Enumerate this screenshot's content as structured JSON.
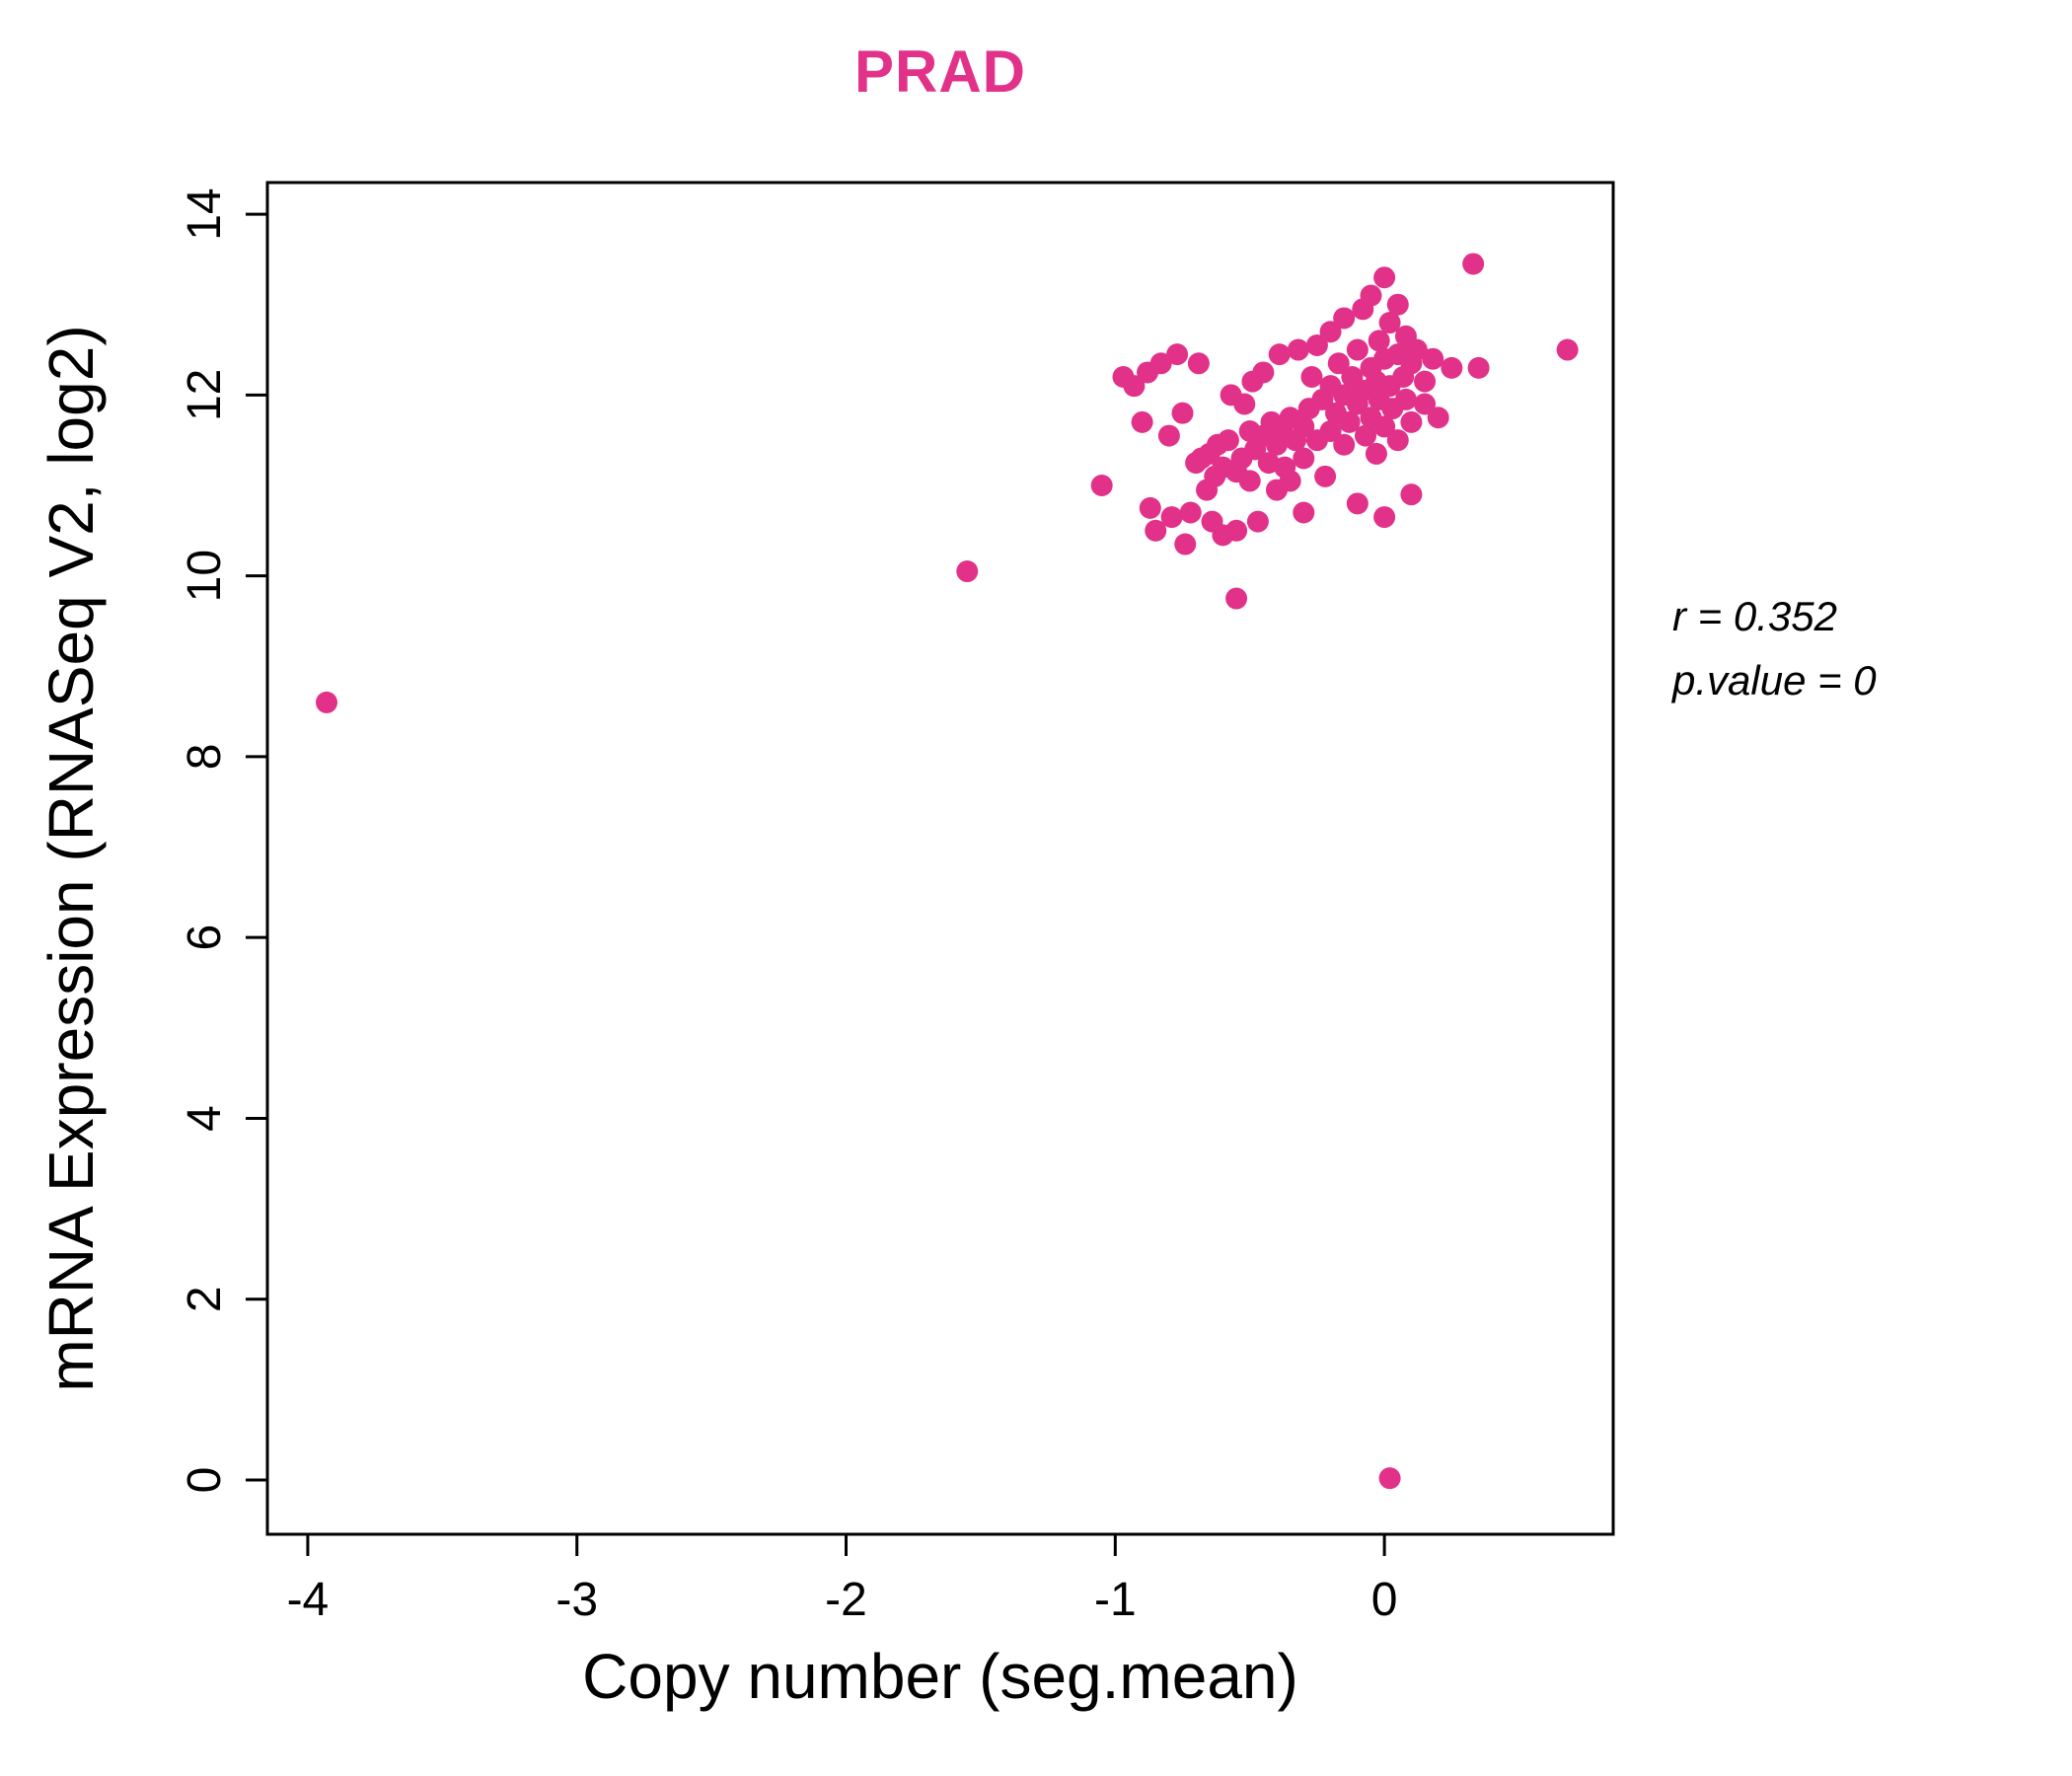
{
  "chart_data": {
    "type": "scatter",
    "title": "PRAD",
    "xlabel": "Copy number (seg.mean)",
    "ylabel": "mRNA Expression (RNASeq V2, log2)",
    "xlim": [
      -4.15,
      0.85
    ],
    "ylim": [
      -0.6,
      14.35
    ],
    "xticks": [
      -4,
      -3,
      -2,
      -1,
      0
    ],
    "yticks": [
      0,
      2,
      4,
      6,
      8,
      10,
      12,
      14
    ],
    "grid": false,
    "legend": "none",
    "point_color": "#E23189",
    "title_color": "#E23189",
    "axis_color": "#000000",
    "annotations": [
      "r = 0.352",
      "p.value = 0"
    ],
    "points": [
      [
        -3.93,
        8.6
      ],
      [
        -1.55,
        10.05
      ],
      [
        -0.55,
        9.75
      ],
      [
        0.02,
        0.02
      ],
      [
        -1.05,
        11.0
      ],
      [
        -0.97,
        12.2
      ],
      [
        -0.93,
        12.1
      ],
      [
        -0.9,
        11.7
      ],
      [
        -0.88,
        12.25
      ],
      [
        -0.87,
        10.75
      ],
      [
        -0.85,
        10.5
      ],
      [
        -0.83,
        12.35
      ],
      [
        -0.8,
        11.55
      ],
      [
        -0.79,
        10.65
      ],
      [
        -0.77,
        12.45
      ],
      [
        -0.75,
        11.8
      ],
      [
        -0.74,
        10.35
      ],
      [
        -0.72,
        10.7
      ],
      [
        -0.7,
        11.25
      ],
      [
        -0.69,
        12.35
      ],
      [
        -0.68,
        11.3
      ],
      [
        -0.66,
        10.95
      ],
      [
        -0.65,
        11.35
      ],
      [
        -0.64,
        10.6
      ],
      [
        -0.63,
        11.1
      ],
      [
        -0.62,
        11.45
      ],
      [
        -0.6,
        11.2
      ],
      [
        -0.6,
        10.45
      ],
      [
        -0.58,
        11.5
      ],
      [
        -0.57,
        12.0
      ],
      [
        -0.55,
        11.15
      ],
      [
        -0.55,
        10.5
      ],
      [
        -0.53,
        11.3
      ],
      [
        -0.52,
        11.9
      ],
      [
        -0.5,
        11.6
      ],
      [
        -0.5,
        11.05
      ],
      [
        -0.49,
        12.15
      ],
      [
        -0.48,
        11.4
      ],
      [
        -0.47,
        10.6
      ],
      [
        -0.45,
        11.55
      ],
      [
        -0.45,
        12.25
      ],
      [
        -0.43,
        11.25
      ],
      [
        -0.42,
        11.7
      ],
      [
        -0.4,
        11.45
      ],
      [
        -0.4,
        10.95
      ],
      [
        -0.39,
        12.45
      ],
      [
        -0.38,
        11.6
      ],
      [
        -0.37,
        11.2
      ],
      [
        -0.35,
        11.75
      ],
      [
        -0.35,
        11.05
      ],
      [
        -0.33,
        11.5
      ],
      [
        -0.32,
        12.5
      ],
      [
        -0.3,
        11.65
      ],
      [
        -0.3,
        11.3
      ],
      [
        -0.3,
        10.7
      ],
      [
        -0.28,
        11.85
      ],
      [
        -0.27,
        12.2
      ],
      [
        -0.25,
        11.5
      ],
      [
        -0.25,
        12.55
      ],
      [
        -0.23,
        11.95
      ],
      [
        -0.22,
        11.1
      ],
      [
        -0.2,
        12.1
      ],
      [
        -0.2,
        11.6
      ],
      [
        -0.2,
        12.7
      ],
      [
        -0.18,
        11.8
      ],
      [
        -0.17,
        12.35
      ],
      [
        -0.15,
        11.45
      ],
      [
        -0.15,
        12.0
      ],
      [
        -0.15,
        12.85
      ],
      [
        -0.13,
        11.7
      ],
      [
        -0.12,
        12.2
      ],
      [
        -0.1,
        11.9
      ],
      [
        -0.1,
        12.5
      ],
      [
        -0.1,
        10.8
      ],
      [
        -0.08,
        12.05
      ],
      [
        -0.08,
        12.95
      ],
      [
        -0.07,
        11.55
      ],
      [
        -0.05,
        12.3
      ],
      [
        -0.05,
        11.75
      ],
      [
        -0.05,
        13.1
      ],
      [
        -0.03,
        12.15
      ],
      [
        -0.03,
        11.35
      ],
      [
        -0.02,
        12.6
      ],
      [
        -0.02,
        11.95
      ],
      [
        0.0,
        12.4
      ],
      [
        0.0,
        11.65
      ],
      [
        0.0,
        13.3
      ],
      [
        0.0,
        10.65
      ],
      [
        0.02,
        12.1
      ],
      [
        0.02,
        12.8
      ],
      [
        0.03,
        11.85
      ],
      [
        0.05,
        12.45
      ],
      [
        0.05,
        11.5
      ],
      [
        0.05,
        13.0
      ],
      [
        0.07,
        12.2
      ],
      [
        0.08,
        11.95
      ],
      [
        0.08,
        12.65
      ],
      [
        0.1,
        12.35
      ],
      [
        0.1,
        11.7
      ],
      [
        0.1,
        10.9
      ],
      [
        0.12,
        12.5
      ],
      [
        0.15,
        12.15
      ],
      [
        0.15,
        11.9
      ],
      [
        0.18,
        12.4
      ],
      [
        0.2,
        11.75
      ],
      [
        0.25,
        12.3
      ],
      [
        0.33,
        13.45
      ],
      [
        0.35,
        12.3
      ],
      [
        0.68,
        12.5
      ]
    ]
  }
}
